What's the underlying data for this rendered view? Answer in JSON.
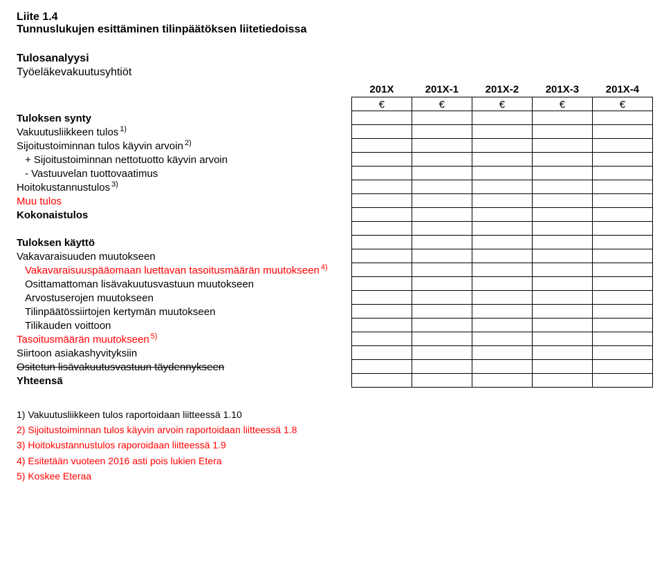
{
  "header": {
    "liite": "Liite 1.4",
    "title": "Tunnuslukujen esittäminen tilinpäätöksen liitetiedoissa",
    "section": "Tulosanalyysi",
    "subsection": "Työeläkevakuutusyhtiöt"
  },
  "columns": [
    "201X",
    "201X-1",
    "201X-2",
    "201X-3",
    "201X-4"
  ],
  "euro": "€",
  "rows": [
    {
      "label": "Tuloksen synty",
      "bold": true
    },
    {
      "label": "Vakuutusliikkeen tulos",
      "sup": "1)"
    },
    {
      "label": "Sijoitustoiminnan tulos käyvin arvoin",
      "sup": "2)"
    },
    {
      "label": "+ Sijoitustoiminnan nettotuotto käyvin arvoin",
      "indent": 1
    },
    {
      "label": "-  Vastuuvelan tuottovaatimus",
      "indent": 1
    },
    {
      "label": "Hoitokustannustulos",
      "sup": "3)"
    },
    {
      "label": "Muu tulos",
      "red": true
    },
    {
      "label": "Kokonaistulos",
      "bold": true
    },
    {
      "spacer": true
    },
    {
      "label": "Tuloksen käyttö",
      "bold": true
    },
    {
      "label": "Vakavaraisuuden muutokseen"
    },
    {
      "label": "Vakavaraisuuspääomaan luettavan tasoitusmäärän muutokseen",
      "sup": "4)",
      "red": true,
      "indent": 1
    },
    {
      "label": "Osittamattoman lisävakuutusvastuun muutokseen",
      "indent": 1
    },
    {
      "label": "Arvostuserojen muutokseen",
      "indent": 1
    },
    {
      "label": "Tilinpäätössiirtojen kertymän muutokseen",
      "indent": 1
    },
    {
      "label": "Tilikauden voittoon",
      "indent": 1
    },
    {
      "label": "Tasoitusmäärän muutokseen",
      "sup": "5)",
      "red": true
    },
    {
      "label": "Siirtoon asiakashyvityksiin"
    },
    {
      "label": "Ositetun lisävakuutusvastuun täydennykseen",
      "strike": true
    },
    {
      "label": "Yhteensä",
      "bold": true
    }
  ],
  "footnotes": [
    {
      "text": "1) Vakuutusliikkeen tulos raportoidaan liitteessä 1.10"
    },
    {
      "text": "2) Sijoitustoiminnan tulos käyvin arvoin raportoidaan liitteessä 1.8",
      "red": true
    },
    {
      "text": "3) Hoitokustannustulos raporoidaan liitteessä 1.9",
      "red": true
    },
    {
      "text": "4) Esitetään vuoteen 2016 asti pois lukien Etera",
      "red": true
    },
    {
      "text": "5) Koskee Eteraa",
      "red": true
    }
  ]
}
